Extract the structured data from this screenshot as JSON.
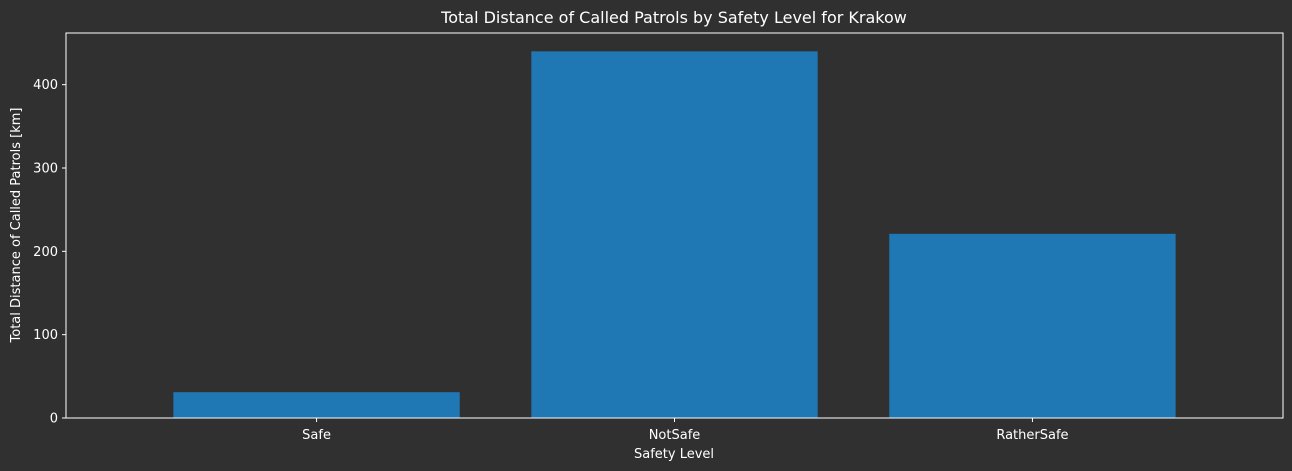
{
  "colors": {
    "background": "#303030",
    "bar": "#1f77b4",
    "axis": "#ffffff",
    "text": "#ffffff"
  },
  "chart_data": {
    "type": "bar",
    "title": "Total Distance of Called Patrols by Safety Level for Krakow",
    "xlabel": "Safety Level",
    "ylabel": "Total Distance of Called Patrols [km]",
    "categories": [
      "Safe",
      "NotSafe",
      "RatherSafe"
    ],
    "values": [
      31,
      440,
      221
    ],
    "ylim": [
      0,
      462
    ],
    "yticks": [
      0,
      100,
      200,
      300,
      400
    ],
    "grid": false,
    "legend": "none"
  }
}
